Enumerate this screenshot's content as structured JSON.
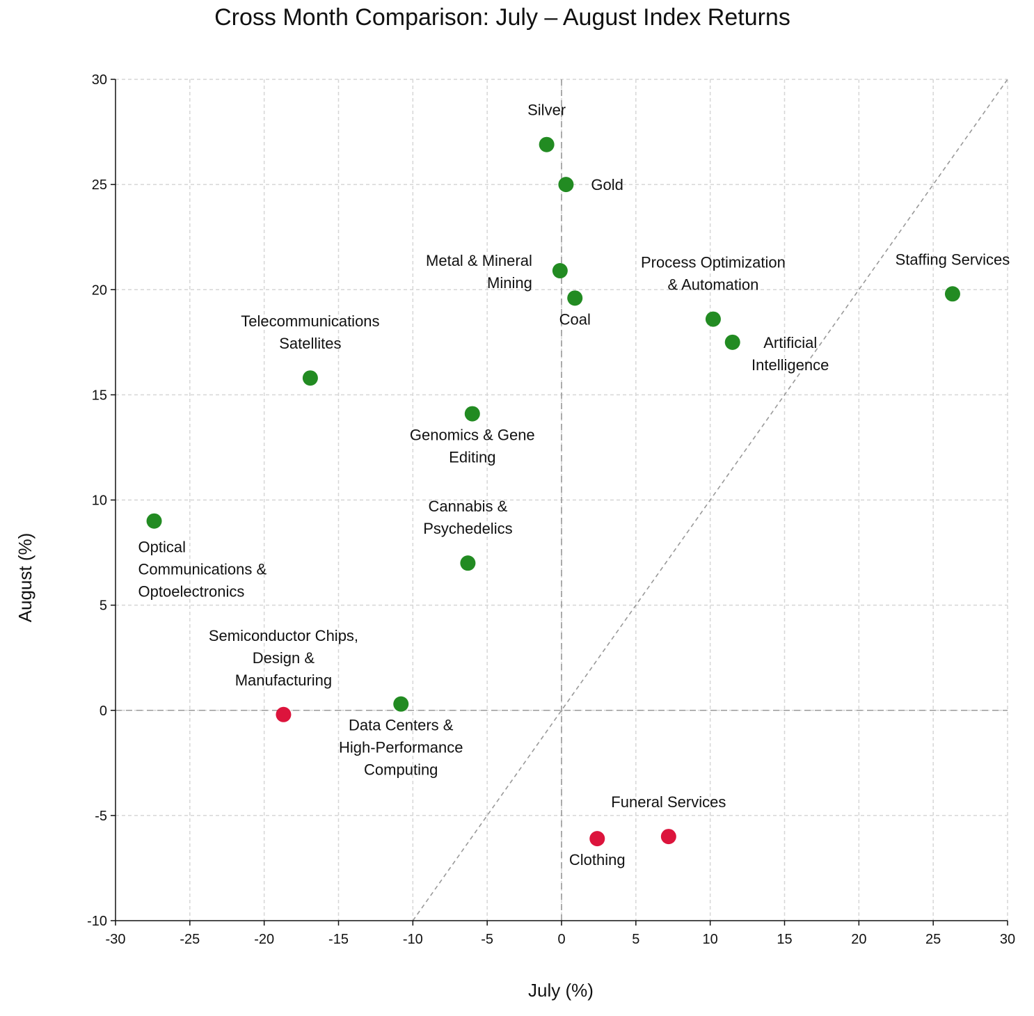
{
  "chart_data": {
    "type": "scatter",
    "title": "Cross Month Comparison: July – August Index Returns",
    "xlabel": "July (%)",
    "ylabel": "August (%)",
    "xlim": [
      -30,
      30
    ],
    "ylim": [
      -10,
      30
    ],
    "xticks": [
      -30,
      -25,
      -20,
      -15,
      -10,
      -5,
      0,
      5,
      10,
      15,
      20,
      25,
      30
    ],
    "yticks": [
      -10,
      -5,
      0,
      5,
      10,
      15,
      20,
      25,
      30
    ],
    "grid": true,
    "reference_lines": [
      "x=0",
      "y=0",
      "y=x"
    ],
    "colors": {
      "positive": "#228b22",
      "negative": "#dc143c"
    },
    "points": [
      {
        "label": [
          "Silver"
        ],
        "x": -1.0,
        "y": 26.9,
        "color": "#228b22",
        "anchor": "above"
      },
      {
        "label": [
          "Gold"
        ],
        "x": 0.3,
        "y": 25.0,
        "color": "#228b22",
        "anchor": "right"
      },
      {
        "label": [
          "Metal & Mineral",
          "Mining"
        ],
        "x": -0.1,
        "y": 20.9,
        "color": "#228b22",
        "anchor": "left-up"
      },
      {
        "label": [
          "Coal"
        ],
        "x": 0.9,
        "y": 19.6,
        "color": "#228b22",
        "anchor": "below"
      },
      {
        "label": [
          "Process Optimization",
          "& Automation"
        ],
        "x": 10.2,
        "y": 18.6,
        "color": "#228b22",
        "anchor": "above"
      },
      {
        "label": [
          "Artificial",
          "Intelligence"
        ],
        "x": 11.5,
        "y": 17.5,
        "color": "#228b22",
        "anchor": "right-down"
      },
      {
        "label": [
          "Staffing Services"
        ],
        "x": 26.3,
        "y": 19.8,
        "color": "#228b22",
        "anchor": "above"
      },
      {
        "label": [
          "Telecommunications",
          "Satellites"
        ],
        "x": -16.9,
        "y": 15.8,
        "color": "#228b22",
        "anchor": "above"
      },
      {
        "label": [
          "Genomics & Gene",
          "Editing"
        ],
        "x": -6.0,
        "y": 14.1,
        "color": "#228b22",
        "anchor": "below"
      },
      {
        "label": [
          "Optical",
          "Communications &",
          "Optoelectronics"
        ],
        "x": -27.4,
        "y": 9.0,
        "color": "#228b22",
        "anchor": "below-right"
      },
      {
        "label": [
          "Cannabis &",
          "Psychedelics"
        ],
        "x": -6.3,
        "y": 7.0,
        "color": "#228b22",
        "anchor": "above"
      },
      {
        "label": [
          "Semiconductor Chips,",
          "Design &",
          "Manufacturing"
        ],
        "x": -18.7,
        "y": -0.2,
        "color": "#dc143c",
        "anchor": "above"
      },
      {
        "label": [
          "Data Centers &",
          "High-Performance",
          "Computing"
        ],
        "x": -10.8,
        "y": 0.3,
        "color": "#228b22",
        "anchor": "below"
      },
      {
        "label": [
          "Funeral Services"
        ],
        "x": 7.2,
        "y": -6.0,
        "color": "#dc143c",
        "anchor": "above"
      },
      {
        "label": [
          "Clothing"
        ],
        "x": 2.4,
        "y": -6.1,
        "color": "#dc143c",
        "anchor": "below"
      }
    ]
  }
}
